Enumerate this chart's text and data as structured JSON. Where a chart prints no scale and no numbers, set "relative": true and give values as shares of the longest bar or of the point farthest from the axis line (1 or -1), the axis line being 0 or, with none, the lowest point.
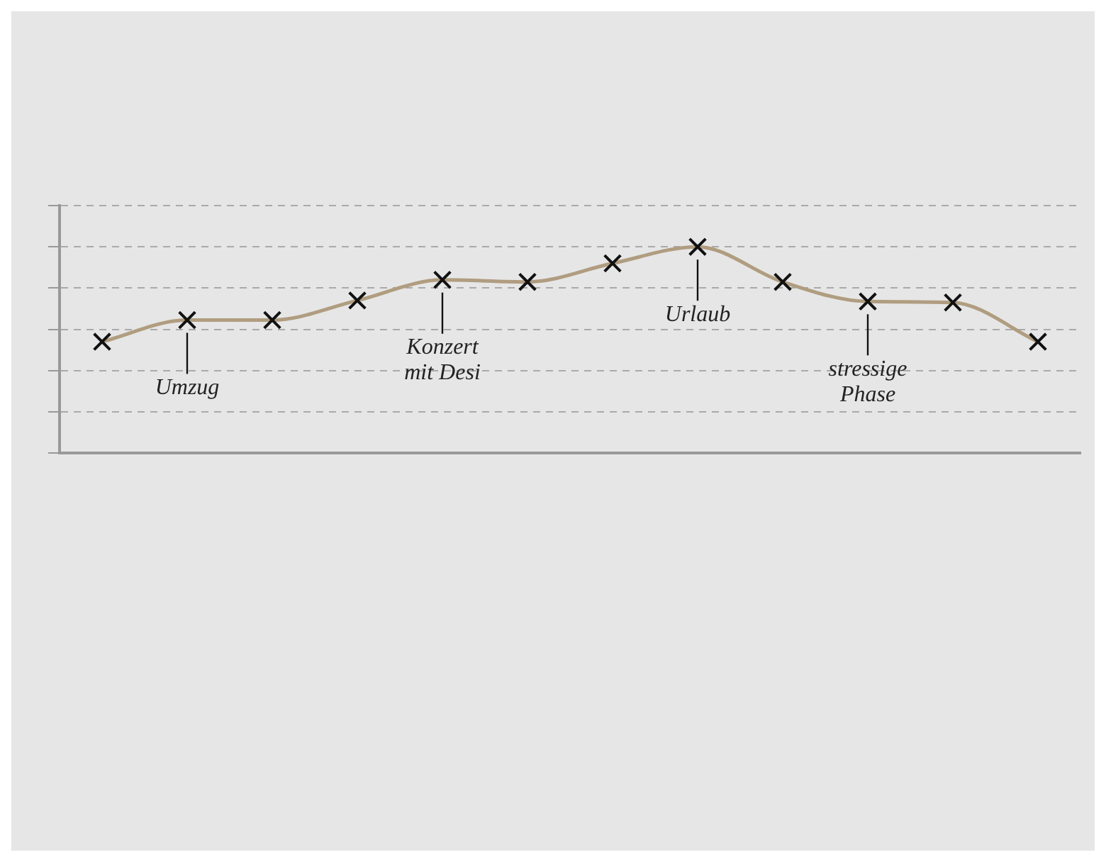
{
  "chart_data": {
    "type": "line",
    "relative": true,
    "categories": [
      null,
      null,
      null,
      null,
      null,
      null,
      null,
      null,
      null,
      null,
      null,
      null
    ],
    "series": [
      {
        "color": "#b09d80",
        "values": [
          0.54,
          0.645,
          0.645,
          0.74,
          0.84,
          0.83,
          0.92,
          1,
          0.83,
          0.735,
          0.73,
          0.54
        ]
      }
    ],
    "annotations": [
      {
        "text": "Umzug",
        "y": 0.645
      },
      {
        "text": "Konzert mit Desi",
        "y": 0.84
      },
      {
        "text": "Urlaub",
        "y": 1
      },
      {
        "text": "stressige Phase",
        "y": 0.735
      }
    ],
    "grid": "y",
    "legend": false,
    "marker": "cross",
    "line_style": "solid"
  }
}
